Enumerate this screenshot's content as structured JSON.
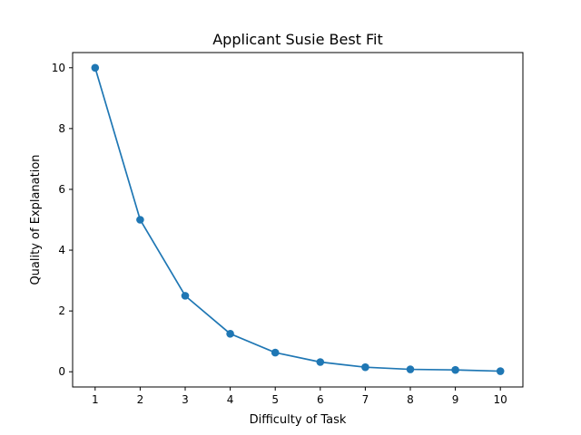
{
  "chart_data": {
    "type": "line",
    "title": "Applicant Susie Best Fit",
    "xlabel": "Difficulty of Task",
    "ylabel": "Quality of Explanation",
    "x": [
      1,
      2,
      3,
      4,
      5,
      6,
      7,
      8,
      9,
      10
    ],
    "series": [
      {
        "values": [
          10.0,
          5.0,
          2.5,
          1.25,
          0.63,
          0.32,
          0.15,
          0.08,
          0.06,
          0.02
        ]
      }
    ],
    "xlim": [
      0.5,
      10.5
    ],
    "ylim": [
      -0.5,
      10.5
    ],
    "xticks": [
      1,
      2,
      3,
      4,
      5,
      6,
      7,
      8,
      9,
      10
    ],
    "yticks": [
      0,
      2,
      4,
      6,
      8,
      10
    ],
    "grid": false,
    "colors": {
      "series": "#1f77b4",
      "axes": "#000000"
    }
  }
}
